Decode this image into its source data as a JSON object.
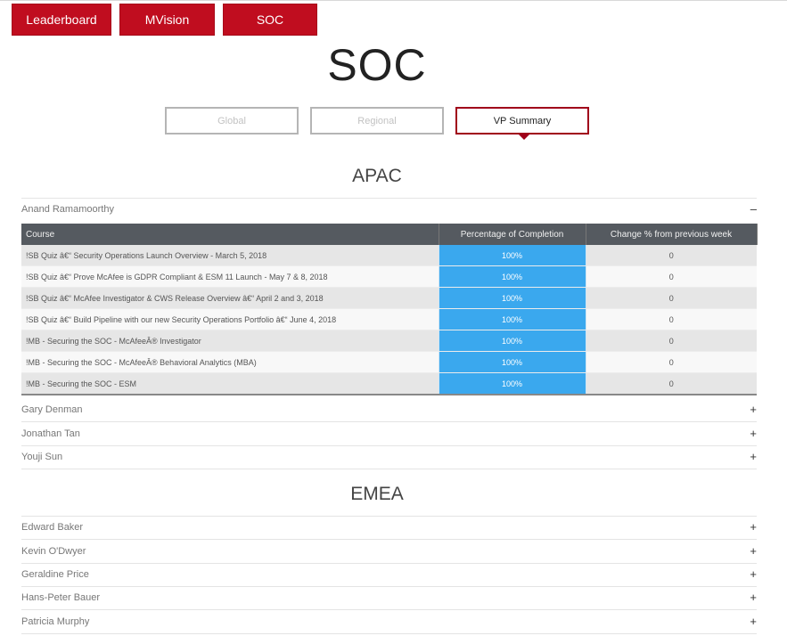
{
  "nav": {
    "leaderboard": "Leaderboard",
    "mvision": "MVision",
    "soc": "SOC"
  },
  "page_title": "SOC",
  "tabs": {
    "global": "Global",
    "regional": "Regional",
    "vp_summary": "VP Summary"
  },
  "regions": {
    "apac": {
      "title": "APAC",
      "people": [
        {
          "name": "Anand Ramamoorthy",
          "toggle": "–"
        },
        {
          "name": "Gary Denman",
          "toggle": "+"
        },
        {
          "name": "Jonathan Tan",
          "toggle": "+"
        },
        {
          "name": "Youji Sun",
          "toggle": "+"
        }
      ]
    },
    "emea": {
      "title": "EMEA",
      "people": [
        {
          "name": "Edward Baker",
          "toggle": "+"
        },
        {
          "name": "Kevin O'Dwyer",
          "toggle": "+"
        },
        {
          "name": "Geraldine Price",
          "toggle": "+"
        },
        {
          "name": "Hans-Peter Bauer",
          "toggle": "+"
        },
        {
          "name": "Patricia Murphy",
          "toggle": "+"
        }
      ]
    }
  },
  "table": {
    "headers": {
      "course": "Course",
      "completion": "Percentage of Completion",
      "change": "Change % from previous week"
    },
    "rows": [
      {
        "course": "!SB Quiz â€“ Security Operations Launch Overview - March 5, 2018",
        "completion": "100%",
        "change": "0"
      },
      {
        "course": "!SB Quiz â€“ Prove McAfee is GDPR Compliant & ESM 11 Launch - May 7 & 8, 2018",
        "completion": "100%",
        "change": "0"
      },
      {
        "course": "!SB Quiz â€“ McAfee Investigator & CWS Release Overview â€“ April 2 and 3, 2018",
        "completion": "100%",
        "change": "0"
      },
      {
        "course": "!SB Quiz â€“ Build Pipeline with our new Security Operations Portfolio â€“ June 4, 2018",
        "completion": "100%",
        "change": "0"
      },
      {
        "course": "!MB - Securing the SOC - McAfeeÂ® Investigator",
        "completion": "100%",
        "change": "0"
      },
      {
        "course": "!MB - Securing the SOC - McAfeeÂ® Behavioral Analytics (MBA)",
        "completion": "100%",
        "change": "0"
      },
      {
        "course": "!MB - Securing the SOC - ESM",
        "completion": "100%",
        "change": "0"
      }
    ]
  }
}
